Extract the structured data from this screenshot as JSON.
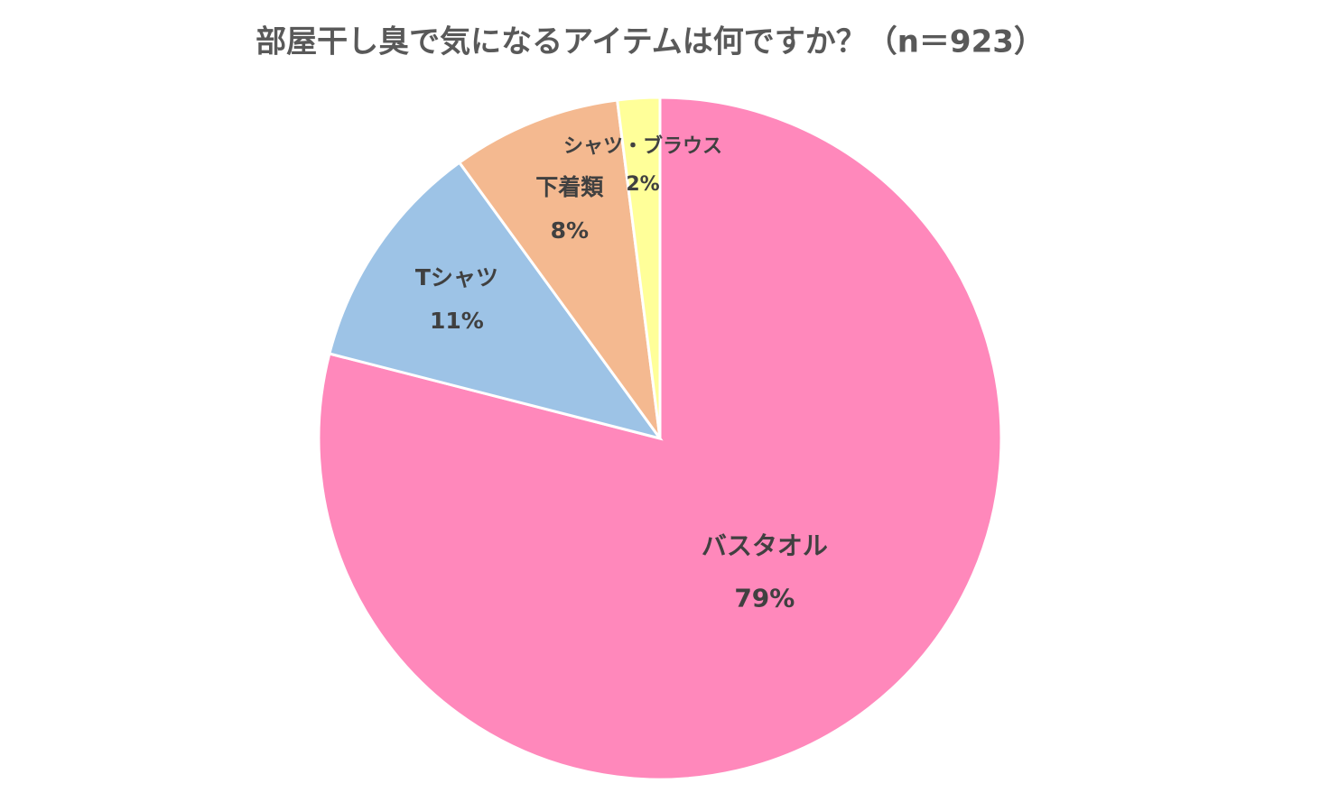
{
  "chart_data": {
    "type": "pie",
    "title": "部屋干し臭で気になるアイテムは何ですか？（n＝923）",
    "categories": [
      "バスタオル",
      "Tシャツ",
      "下着類",
      "シャツ・ブラウス"
    ],
    "values": [
      79,
      11,
      8,
      2
    ],
    "value_labels": [
      "79%",
      "11%",
      "8%",
      "2%"
    ],
    "colors": [
      "#ff88bb",
      "#9dc3e6",
      "#f4b990",
      "#ffff99"
    ]
  }
}
